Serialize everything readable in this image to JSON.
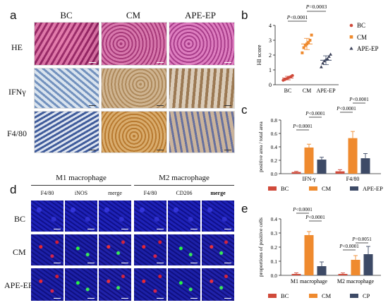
{
  "panel_a": {
    "letter": "a",
    "columns": [
      "BC",
      "CM",
      "APE-EP"
    ],
    "rows": [
      "HE",
      "IFNγ",
      "F4/80"
    ]
  },
  "panel_d": {
    "letter": "d",
    "groups": [
      "M1 macrophage",
      "M2 macrophage"
    ],
    "channels": [
      "F4/80",
      "iNOS",
      "merge",
      "F4/80",
      "CD206",
      "merge"
    ],
    "rows": [
      "BC",
      "CM",
      "APE-EP"
    ]
  },
  "colors": {
    "BC": "#d04a3a",
    "CM": "#ef8a2e",
    "EP": "#3d4a66",
    "triangle": "#3a3f57"
  },
  "chart_data": [
    {
      "panel": "b",
      "type": "scatter",
      "ylabel": "HI score",
      "ylim": [
        0,
        4
      ],
      "yticks": [
        0,
        1,
        2,
        3,
        4
      ],
      "categories": [
        "BC",
        "CM",
        "APE-EP"
      ],
      "series": [
        {
          "name": "BC",
          "values": [
            0.3,
            0.35,
            0.4,
            0.45,
            0.5,
            0.55,
            0.62
          ]
        },
        {
          "name": "CM",
          "values": [
            2.15,
            2.5,
            2.65,
            2.75,
            2.85,
            3.0,
            3.35
          ]
        },
        {
          "name": "APE-EP",
          "values": [
            1.2,
            1.45,
            1.6,
            1.7,
            1.75,
            1.9,
            2.05
          ]
        }
      ],
      "means": [
        0.45,
        2.75,
        1.65
      ],
      "sds": [
        0.12,
        0.38,
        0.3
      ],
      "annotations": [
        "P<0.0001",
        "P=0.0003"
      ],
      "legend": [
        "BC",
        "CM",
        "APE-EP"
      ]
    },
    {
      "panel": "c",
      "type": "bar",
      "ylabel": "positive area / total area",
      "ylim": [
        0,
        0.8
      ],
      "yticks": [
        "0.0",
        "0.2",
        "0.4",
        "0.6",
        "0.8"
      ],
      "categories": [
        "IFN-γ",
        "F4/80"
      ],
      "series": [
        {
          "name": "BC",
          "values": [
            0.025,
            0.035
          ],
          "errors": [
            0.01,
            0.025
          ]
        },
        {
          "name": "CM",
          "values": [
            0.39,
            0.53
          ],
          "errors": [
            0.05,
            0.1
          ]
        },
        {
          "name": "APE-EP",
          "values": [
            0.21,
            0.23
          ],
          "errors": [
            0.035,
            0.07
          ]
        }
      ],
      "annotations": [
        "P<0.0001",
        "P<0.0001",
        "P<0.0001",
        "P<0.0001"
      ]
    },
    {
      "panel": "e",
      "type": "bar",
      "ylabel": "proportions of positive cells",
      "ylim": [
        0,
        0.4
      ],
      "yticks": [
        "0.0",
        "0.1",
        "0.2",
        "0.3",
        "0.4"
      ],
      "categories": [
        "M1 macrophage",
        "M2 macrophage"
      ],
      "series": [
        {
          "name": "BC",
          "values": [
            0.01,
            0.01
          ],
          "errors": [
            0.008,
            0.007
          ]
        },
        {
          "name": "CM",
          "values": [
            0.285,
            0.11
          ],
          "errors": [
            0.025,
            0.03
          ]
        },
        {
          "name": "CP",
          "values": [
            0.065,
            0.15
          ],
          "errors": [
            0.03,
            0.055
          ]
        }
      ],
      "annotations": [
        "P<0.0001",
        "P<0.0001",
        "P<0.0001",
        "P=0.0051"
      ]
    }
  ]
}
